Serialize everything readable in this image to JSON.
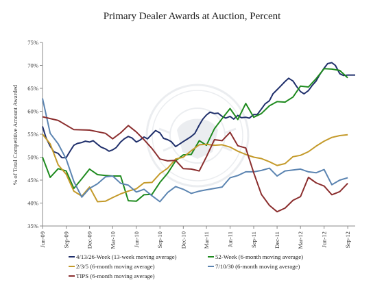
{
  "chart_data": {
    "type": "line",
    "title": "Primary Dealer Awards at Auction, Percent",
    "ylabel": "% of Total Competitive Amount Awarded",
    "xlabel": "",
    "ylim": [
      35,
      75
    ],
    "yticks": [
      35,
      40,
      45,
      50,
      55,
      60,
      65,
      70,
      75
    ],
    "ytick_labels": [
      "35%",
      "40%",
      "45%",
      "50%",
      "55%",
      "60%",
      "65%",
      "70%",
      "75%"
    ],
    "xlim": [
      "2009-06-01",
      "2012-09-30"
    ],
    "xticks": [
      "2009-06-01",
      "2009-09-01",
      "2009-12-01",
      "2010-03-01",
      "2010-06-01",
      "2010-09-01",
      "2010-12-01",
      "2011-03-01",
      "2011-06-01",
      "2011-09-01",
      "2011-12-01",
      "2012-03-01",
      "2012-06-01",
      "2012-09-01"
    ],
    "xtick_labels": [
      "Jun-09",
      "Sep-09",
      "Dec-09",
      "Mar-10",
      "Jun-10",
      "Sep-10",
      "Dec-10",
      "Mar-11",
      "Jun-11",
      "Sep-11",
      "Dec-11",
      "Mar-12",
      "Jun-12",
      "Sep-12"
    ],
    "grid": false,
    "legend_position": "bottom",
    "series": [
      {
        "name": "4/13/26-Week (13-week moving average)",
        "color": "#1f2f6b",
        "points": [
          [
            "2009-06-01",
            56.7
          ],
          [
            "2009-06-15",
            54.2
          ],
          [
            "2009-07-01",
            52.4
          ],
          [
            "2009-07-15",
            51.2
          ],
          [
            "2009-08-01",
            50.8
          ],
          [
            "2009-08-15",
            49.9
          ],
          [
            "2009-09-01",
            49.9
          ],
          [
            "2009-09-15",
            51.2
          ],
          [
            "2009-10-01",
            52.6
          ],
          [
            "2009-10-15",
            53.0
          ],
          [
            "2009-11-01",
            53.2
          ],
          [
            "2009-11-15",
            53.5
          ],
          [
            "2009-12-01",
            53.3
          ],
          [
            "2009-12-15",
            53.6
          ],
          [
            "2010-01-01",
            52.8
          ],
          [
            "2010-01-15",
            52.2
          ],
          [
            "2010-02-01",
            51.8
          ],
          [
            "2010-02-15",
            51.3
          ],
          [
            "2010-03-01",
            51.6
          ],
          [
            "2010-03-15",
            52.1
          ],
          [
            "2010-04-01",
            53.3
          ],
          [
            "2010-04-15",
            54.0
          ],
          [
            "2010-05-01",
            54.5
          ],
          [
            "2010-05-15",
            54.2
          ],
          [
            "2010-06-01",
            53.3
          ],
          [
            "2010-06-15",
            53.7
          ],
          [
            "2010-07-01",
            54.4
          ],
          [
            "2010-07-15",
            54.0
          ],
          [
            "2010-08-01",
            55.0
          ],
          [
            "2010-08-15",
            55.8
          ],
          [
            "2010-09-01",
            55.3
          ],
          [
            "2010-09-15",
            54.1
          ],
          [
            "2010-10-01",
            53.8
          ],
          [
            "2010-10-15",
            53.4
          ],
          [
            "2010-11-01",
            52.3
          ],
          [
            "2010-11-15",
            52.8
          ],
          [
            "2010-12-01",
            53.4
          ],
          [
            "2010-12-15",
            53.9
          ],
          [
            "2011-01-01",
            54.5
          ],
          [
            "2011-01-15",
            55.2
          ],
          [
            "2011-02-01",
            57.0
          ],
          [
            "2011-02-15",
            58.3
          ],
          [
            "2011-03-01",
            59.2
          ],
          [
            "2011-03-15",
            59.8
          ],
          [
            "2011-04-01",
            59.5
          ],
          [
            "2011-04-15",
            59.6
          ],
          [
            "2011-05-01",
            58.9
          ],
          [
            "2011-05-15",
            58.5
          ],
          [
            "2011-06-01",
            58.9
          ],
          [
            "2011-06-15",
            58.3
          ],
          [
            "2011-07-01",
            59.1
          ],
          [
            "2011-07-15",
            58.6
          ],
          [
            "2011-08-01",
            58.7
          ],
          [
            "2011-08-15",
            58.5
          ],
          [
            "2011-09-01",
            59.3
          ],
          [
            "2011-09-15",
            59.3
          ],
          [
            "2011-10-01",
            60.5
          ],
          [
            "2011-10-15",
            61.6
          ],
          [
            "2011-11-01",
            62.3
          ],
          [
            "2011-11-15",
            63.8
          ],
          [
            "2011-12-01",
            64.7
          ],
          [
            "2011-12-15",
            65.5
          ],
          [
            "2012-01-01",
            66.5
          ],
          [
            "2012-01-15",
            67.2
          ],
          [
            "2012-02-01",
            66.6
          ],
          [
            "2012-02-15",
            65.4
          ],
          [
            "2012-03-01",
            64.3
          ],
          [
            "2012-03-15",
            63.8
          ],
          [
            "2012-04-01",
            64.5
          ],
          [
            "2012-04-15",
            65.6
          ],
          [
            "2012-05-01",
            66.6
          ],
          [
            "2012-05-15",
            68.0
          ],
          [
            "2012-06-01",
            69.4
          ],
          [
            "2012-06-15",
            70.4
          ],
          [
            "2012-07-01",
            70.6
          ],
          [
            "2012-07-15",
            70.0
          ],
          [
            "2012-08-01",
            68.2
          ],
          [
            "2012-08-15",
            67.8
          ],
          [
            "2012-09-01",
            67.9
          ],
          [
            "2012-09-30",
            67.9
          ]
        ]
      },
      {
        "name": "52-Week (6-month moving average)",
        "color": "#1e8a1e",
        "points": [
          [
            "2009-06-01",
            50.0
          ],
          [
            "2009-07-01",
            45.6
          ],
          [
            "2009-08-01",
            47.5
          ],
          [
            "2009-09-01",
            47.0
          ],
          [
            "2009-10-01",
            43.2
          ],
          [
            "2009-11-01",
            45.3
          ],
          [
            "2009-12-01",
            47.4
          ],
          [
            "2010-01-01",
            46.2
          ],
          [
            "2010-02-01",
            46.0
          ],
          [
            "2010-03-01",
            45.9
          ],
          [
            "2010-04-01",
            45.9
          ],
          [
            "2010-05-01",
            40.5
          ],
          [
            "2010-06-01",
            40.4
          ],
          [
            "2010-07-01",
            41.8
          ],
          [
            "2010-08-01",
            41.9
          ],
          [
            "2010-09-01",
            44.5
          ],
          [
            "2010-10-01",
            46.5
          ],
          [
            "2010-11-01",
            49.2
          ],
          [
            "2010-12-01",
            50.5
          ],
          [
            "2011-01-01",
            50.6
          ],
          [
            "2011-02-01",
            53.6
          ],
          [
            "2011-03-01",
            52.6
          ],
          [
            "2011-04-01",
            56.2
          ],
          [
            "2011-05-01",
            58.4
          ],
          [
            "2011-06-01",
            60.6
          ],
          [
            "2011-07-01",
            58.2
          ],
          [
            "2011-08-01",
            61.7
          ],
          [
            "2011-09-01",
            58.7
          ],
          [
            "2011-10-01",
            59.5
          ],
          [
            "2011-11-01",
            61.2
          ],
          [
            "2011-12-01",
            62.1
          ],
          [
            "2012-01-01",
            62.0
          ],
          [
            "2012-02-01",
            63.1
          ],
          [
            "2012-03-01",
            65.5
          ],
          [
            "2012-04-01",
            65.3
          ],
          [
            "2012-05-01",
            67.1
          ],
          [
            "2012-06-01",
            69.3
          ],
          [
            "2012-07-01",
            69.2
          ],
          [
            "2012-08-01",
            68.9
          ],
          [
            "2012-09-01",
            67.3
          ]
        ]
      },
      {
        "name": "2/3/5 (6-month moving average)",
        "color": "#c49a2a",
        "points": [
          [
            "2009-06-01",
            55.0
          ],
          [
            "2009-07-01",
            52.9
          ],
          [
            "2009-08-01",
            48.3
          ],
          [
            "2009-09-01",
            46.3
          ],
          [
            "2009-10-01",
            42.6
          ],
          [
            "2009-11-01",
            41.5
          ],
          [
            "2009-12-01",
            43.5
          ],
          [
            "2010-01-01",
            40.3
          ],
          [
            "2010-02-01",
            40.4
          ],
          [
            "2010-03-01",
            41.2
          ],
          [
            "2010-04-01",
            42.0
          ],
          [
            "2010-05-01",
            42.6
          ],
          [
            "2010-06-01",
            43.1
          ],
          [
            "2010-07-01",
            44.4
          ],
          [
            "2010-08-01",
            44.5
          ],
          [
            "2010-09-01",
            46.4
          ],
          [
            "2010-10-01",
            47.6
          ],
          [
            "2010-11-01",
            49.6
          ],
          [
            "2010-12-01",
            50.0
          ],
          [
            "2011-01-01",
            51.4
          ],
          [
            "2011-02-01",
            52.7
          ],
          [
            "2011-03-01",
            52.8
          ],
          [
            "2011-04-01",
            52.6
          ],
          [
            "2011-05-01",
            52.7
          ],
          [
            "2011-06-01",
            52.2
          ],
          [
            "2011-07-01",
            51.3
          ],
          [
            "2011-08-01",
            50.6
          ],
          [
            "2011-09-01",
            50.0
          ],
          [
            "2011-10-01",
            49.7
          ],
          [
            "2011-11-01",
            49.0
          ],
          [
            "2011-12-01",
            48.2
          ],
          [
            "2012-01-01",
            48.6
          ],
          [
            "2012-02-01",
            50.1
          ],
          [
            "2012-03-01",
            50.4
          ],
          [
            "2012-04-01",
            51.2
          ],
          [
            "2012-05-01",
            52.4
          ],
          [
            "2012-06-01",
            53.5
          ],
          [
            "2012-07-01",
            54.3
          ],
          [
            "2012-08-01",
            54.7
          ],
          [
            "2012-09-01",
            54.9
          ]
        ]
      },
      {
        "name": "7/10/30 (6-month moving average)",
        "color": "#5b84b1",
        "points": [
          [
            "2009-06-01",
            62.8
          ],
          [
            "2009-07-01",
            55.2
          ],
          [
            "2009-08-01",
            52.9
          ],
          [
            "2009-09-01",
            49.6
          ],
          [
            "2009-10-01",
            44.7
          ],
          [
            "2009-11-01",
            41.3
          ],
          [
            "2009-12-01",
            43.2
          ],
          [
            "2010-01-01",
            44.2
          ],
          [
            "2010-02-01",
            45.7
          ],
          [
            "2010-03-01",
            45.9
          ],
          [
            "2010-04-01",
            44.3
          ],
          [
            "2010-05-01",
            43.9
          ],
          [
            "2010-06-01",
            42.4
          ],
          [
            "2010-07-01",
            43.0
          ],
          [
            "2010-08-01",
            41.6
          ],
          [
            "2010-09-01",
            40.3
          ],
          [
            "2010-10-01",
            42.3
          ],
          [
            "2010-11-01",
            43.6
          ],
          [
            "2010-12-01",
            43.0
          ],
          [
            "2011-01-01",
            42.1
          ],
          [
            "2011-02-01",
            42.6
          ],
          [
            "2011-03-01",
            42.9
          ],
          [
            "2011-04-01",
            43.2
          ],
          [
            "2011-05-01",
            43.5
          ],
          [
            "2011-06-01",
            45.5
          ],
          [
            "2011-07-01",
            46.0
          ],
          [
            "2011-08-01",
            46.8
          ],
          [
            "2011-09-01",
            46.8
          ],
          [
            "2011-10-01",
            47.1
          ],
          [
            "2011-11-01",
            47.6
          ],
          [
            "2011-12-01",
            45.9
          ],
          [
            "2012-01-01",
            47.0
          ],
          [
            "2012-02-01",
            47.2
          ],
          [
            "2012-03-01",
            47.4
          ],
          [
            "2012-04-01",
            46.8
          ],
          [
            "2012-05-01",
            46.6
          ],
          [
            "2012-06-01",
            47.3
          ],
          [
            "2012-07-01",
            44.0
          ],
          [
            "2012-08-01",
            45.0
          ],
          [
            "2012-09-01",
            45.5
          ]
        ]
      },
      {
        "name": "TIPS (6-month moving average)",
        "color": "#8b2e2e",
        "points": [
          [
            "2009-06-01",
            58.8
          ],
          [
            "2009-08-01",
            58.0
          ],
          [
            "2009-10-01",
            56.0
          ],
          [
            "2009-12-01",
            55.9
          ],
          [
            "2010-02-01",
            55.2
          ],
          [
            "2010-03-01",
            54.0
          ],
          [
            "2010-04-01",
            55.3
          ],
          [
            "2010-05-01",
            56.9
          ],
          [
            "2010-06-01",
            55.5
          ],
          [
            "2010-07-01",
            53.8
          ],
          [
            "2010-08-01",
            51.9
          ],
          [
            "2010-09-01",
            49.6
          ],
          [
            "2010-10-01",
            49.2
          ],
          [
            "2010-11-01",
            49.3
          ],
          [
            "2010-12-01",
            47.5
          ],
          [
            "2011-01-01",
            47.4
          ],
          [
            "2011-02-01",
            47.0
          ],
          [
            "2011-03-01",
            50.1
          ],
          [
            "2011-04-01",
            53.8
          ],
          [
            "2011-05-01",
            53.6
          ],
          [
            "2011-06-01",
            55.4
          ],
          [
            "2011-07-01",
            52.5
          ],
          [
            "2011-08-01",
            52.0
          ],
          [
            "2011-09-01",
            46.6
          ],
          [
            "2011-10-01",
            41.9
          ],
          [
            "2011-11-01",
            39.5
          ],
          [
            "2011-12-01",
            38.1
          ],
          [
            "2012-01-01",
            38.9
          ],
          [
            "2012-02-01",
            40.6
          ],
          [
            "2012-03-01",
            41.4
          ],
          [
            "2012-04-01",
            45.6
          ],
          [
            "2012-05-01",
            44.4
          ],
          [
            "2012-06-01",
            43.7
          ],
          [
            "2012-07-01",
            41.8
          ],
          [
            "2012-08-01",
            42.5
          ],
          [
            "2012-09-01",
            44.3
          ]
        ]
      }
    ]
  },
  "colors": {
    "axis": "#888888",
    "seal": "#6b7d8f"
  }
}
